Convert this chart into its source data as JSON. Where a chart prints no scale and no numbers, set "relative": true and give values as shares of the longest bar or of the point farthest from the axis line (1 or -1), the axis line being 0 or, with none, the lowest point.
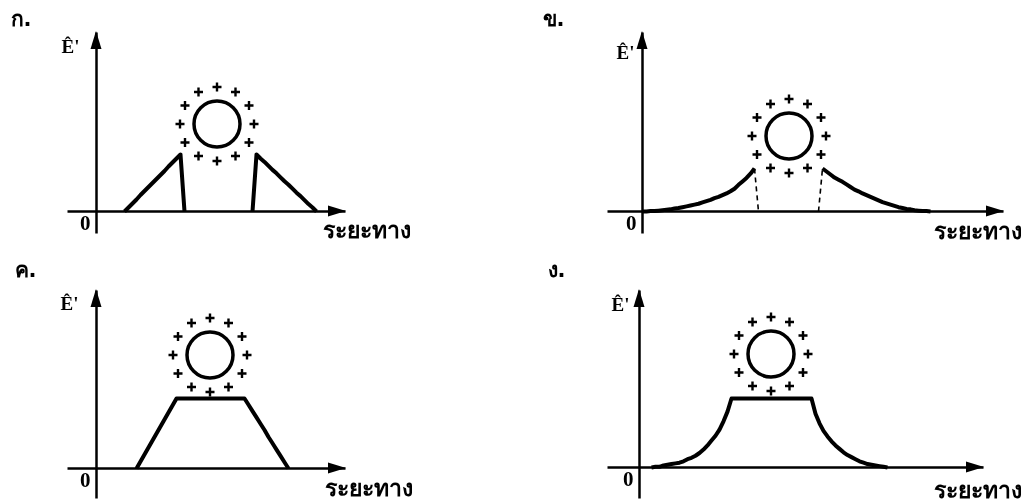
{
  "chart_data": [
    {
      "type": "line",
      "title": "ก.",
      "ylabel": "Ê'",
      "xlabel": "ระยะทาง",
      "annotations": [
        "0"
      ],
      "relative": true,
      "categories": [
        null,
        null,
        null,
        null,
        null,
        null,
        null,
        null,
        null,
        null,
        null,
        null,
        null,
        null,
        null,
        null,
        null,
        null,
        null,
        null,
        null,
        null,
        null,
        null,
        null,
        null,
        null,
        null,
        null,
        null,
        null,
        null,
        null,
        null,
        null,
        null,
        null,
        null,
        null,
        null,
        null,
        null,
        null,
        null,
        null,
        null,
        null,
        null,
        null,
        null,
        null,
        null,
        null,
        null,
        null,
        null
      ],
      "series": [
        {
          "color": "#000000",
          "values": [
            null,
            null,
            null,
            null,
            null,
            null,
            null,
            0,
            0.07,
            0.14,
            0.21,
            0.29,
            0.36,
            0.43,
            0.5,
            0.57,
            0.64,
            0.71,
            0.79,
            0.86,
            0.93,
            1,
            0,
            null,
            null,
            null,
            null,
            null,
            null,
            null,
            null,
            null,
            null,
            null,
            null,
            null,
            null,
            null,
            null,
            null,
            null,
            null,
            null,
            null,
            null,
            null,
            null,
            null,
            null,
            null,
            null,
            null,
            null,
            null,
            null,
            null
          ]
        },
        {
          "color": "#000000",
          "values": [
            null,
            null,
            null,
            null,
            null,
            null,
            null,
            null,
            null,
            null,
            null,
            null,
            null,
            null,
            null,
            null,
            null,
            null,
            null,
            null,
            null,
            null,
            null,
            null,
            null,
            null,
            null,
            null,
            null,
            null,
            null,
            null,
            null,
            null,
            null,
            null,
            null,
            null,
            null,
            0,
            1,
            0.93,
            0.87,
            0.8,
            0.73,
            0.67,
            0.6,
            0.53,
            0.47,
            0.4,
            0.33,
            0.27,
            0.2,
            0.13,
            0.07,
            0
          ]
        }
      ]
    },
    {
      "type": "line",
      "title": "ข.",
      "ylabel": "Ê'",
      "xlabel": "ระยะทาง",
      "annotations": [
        "0"
      ],
      "relative": true,
      "categories": [
        null,
        null,
        null,
        null,
        null,
        null,
        null,
        null,
        null,
        null,
        null,
        null,
        null,
        null,
        null,
        null,
        null,
        null,
        null,
        null,
        null,
        null,
        null,
        null,
        null,
        null,
        null,
        null,
        null,
        null,
        null,
        null,
        null,
        null,
        null,
        null,
        null,
        null,
        null,
        null,
        null,
        null,
        null,
        null,
        null,
        null,
        null,
        null,
        null,
        null,
        null,
        null,
        null,
        null,
        null,
        null,
        null,
        null,
        null,
        null,
        null,
        null,
        null,
        null,
        null,
        null,
        null,
        null,
        null,
        null,
        null,
        null,
        null
      ],
      "series": [
        {
          "color": "#000000",
          "values": [
            0,
            0,
            0.01,
            0.01,
            0.02,
            0.03,
            0.04,
            0.05,
            0.07,
            0.08,
            0.1,
            0.12,
            0.14,
            0.16,
            0.18,
            0.21,
            0.24,
            0.27,
            0.31,
            0.34,
            0.38,
            0.42,
            0.47,
            0.53,
            0.62,
            0.7,
            0.78,
            0.88,
            1,
            null,
            null,
            null,
            null,
            null,
            null,
            null,
            null,
            null,
            null,
            null,
            null,
            null,
            null,
            null,
            null,
            null,
            null,
            null,
            null,
            null,
            null,
            null,
            null,
            null,
            null,
            null,
            null,
            null,
            null,
            null,
            null,
            null,
            null,
            null,
            null,
            null,
            null,
            null,
            null,
            null,
            null,
            null,
            null
          ]
        },
        {
          "color": "#000000",
          "values": [
            null,
            null,
            null,
            null,
            null,
            null,
            null,
            null,
            null,
            null,
            null,
            null,
            null,
            null,
            null,
            null,
            null,
            null,
            null,
            null,
            null,
            null,
            null,
            null,
            null,
            null,
            null,
            null,
            null,
            null,
            null,
            null,
            null,
            null,
            null,
            null,
            null,
            null,
            null,
            null,
            null,
            null,
            null,
            null,
            null,
            1,
            0.93,
            0.86,
            0.79,
            0.74,
            0.69,
            0.63,
            0.57,
            0.51,
            0.47,
            0.42,
            0.38,
            0.34,
            0.3,
            0.26,
            0.22,
            0.19,
            0.16,
            0.13,
            0.1,
            0.08,
            0.06,
            0.05,
            0.03,
            0.02,
            0.01,
            0.01,
            0
          ]
        },
        {
          "color": "#000000",
          "line_style": "dashed",
          "values": [
            null,
            null,
            null,
            null,
            null,
            null,
            null,
            null,
            null,
            null,
            null,
            null,
            null,
            null,
            null,
            null,
            null,
            null,
            null,
            null,
            null,
            null,
            null,
            null,
            null,
            null,
            null,
            null,
            1,
            0,
            null,
            null,
            null,
            null,
            null,
            null,
            null,
            null,
            null,
            null,
            null,
            null,
            null,
            null,
            null,
            null,
            null,
            null,
            null,
            null,
            null,
            null,
            null,
            null,
            null,
            null,
            null,
            null,
            null,
            null,
            null,
            null,
            null,
            null,
            null,
            null,
            null,
            null,
            null,
            null,
            null,
            null,
            null
          ]
        },
        {
          "color": "#000000",
          "line_style": "dashed",
          "values": [
            null,
            null,
            null,
            null,
            null,
            null,
            null,
            null,
            null,
            null,
            null,
            null,
            null,
            null,
            null,
            null,
            null,
            null,
            null,
            null,
            null,
            null,
            null,
            null,
            null,
            null,
            null,
            null,
            null,
            null,
            null,
            null,
            null,
            null,
            null,
            null,
            null,
            null,
            null,
            null,
            null,
            null,
            null,
            null,
            0,
            1,
            null,
            null,
            null,
            null,
            null,
            null,
            null,
            null,
            null,
            null,
            null,
            null,
            null,
            null,
            null,
            null,
            null,
            null,
            null,
            null,
            null,
            null,
            null,
            null,
            null,
            null,
            null
          ]
        }
      ]
    },
    {
      "type": "line",
      "title": "ค.",
      "ylabel": "Ê'",
      "xlabel": "ระยะทาง",
      "annotations": [
        "0"
      ],
      "relative": true,
      "categories": [
        null,
        null,
        null,
        null,
        null,
        null,
        null,
        null,
        null,
        null,
        null,
        null,
        null,
        null,
        null,
        null,
        null,
        null,
        null,
        null,
        null,
        null,
        null,
        null,
        null,
        null,
        null,
        null,
        null,
        null,
        null,
        null,
        null,
        null,
        null,
        null,
        null,
        null,
        null,
        null,
        null,
        null,
        null,
        null,
        null,
        null,
        null,
        null,
        null
      ],
      "series": [
        {
          "color": "#000000",
          "values": [
            null,
            null,
            null,
            null,
            null,
            null,
            null,
            null,
            null,
            null,
            0,
            0.1,
            0.2,
            0.3,
            0.4,
            0.5,
            0.6,
            0.7,
            0.8,
            0.9,
            1,
            1,
            1,
            1,
            1,
            1,
            1,
            1,
            1,
            1,
            1,
            1,
            1,
            1,
            1,
            1,
            1,
            1,
            0.91,
            0.82,
            0.73,
            0.64,
            0.55,
            0.45,
            0.36,
            0.27,
            0.18,
            0.09,
            0
          ]
        }
      ]
    },
    {
      "type": "line",
      "title": "ง.",
      "ylabel": "Ê'",
      "xlabel": "ระยะทาง",
      "annotations": [
        "0"
      ],
      "relative": true,
      "categories": [
        null,
        null,
        null,
        null,
        null,
        null,
        null,
        null,
        null,
        null,
        null,
        null,
        null,
        null,
        null,
        null,
        null,
        null,
        null,
        null,
        null,
        null,
        null,
        null,
        null,
        null,
        null,
        null,
        null,
        null,
        null,
        null,
        null,
        null,
        null,
        null,
        null,
        null,
        null,
        null,
        null,
        null,
        null,
        null,
        null,
        null,
        null,
        null,
        null,
        null,
        null,
        null,
        null,
        null,
        null,
        null,
        null,
        null,
        null,
        null,
        null,
        null,
        null
      ],
      "series": [
        {
          "color": "#000000",
          "values": [
            null,
            null,
            null,
            0,
            0.01,
            0.01,
            0.03,
            0.04,
            0.05,
            0.06,
            0.07,
            0.09,
            0.12,
            0.14,
            0.17,
            0.21,
            0.26,
            0.32,
            0.39,
            0.46,
            0.55,
            0.67,
            0.81,
            1,
            1,
            1,
            1,
            1,
            1,
            1,
            1,
            1,
            1,
            1,
            1,
            1,
            1,
            1,
            1,
            1,
            1,
            1,
            1,
            1,
            0.78,
            0.64,
            0.53,
            0.45,
            0.38,
            0.32,
            0.27,
            0.22,
            0.18,
            0.15,
            0.12,
            0.09,
            0.07,
            0.05,
            0.04,
            0.03,
            0.02,
            0.01,
            0
          ]
        }
      ]
    }
  ]
}
